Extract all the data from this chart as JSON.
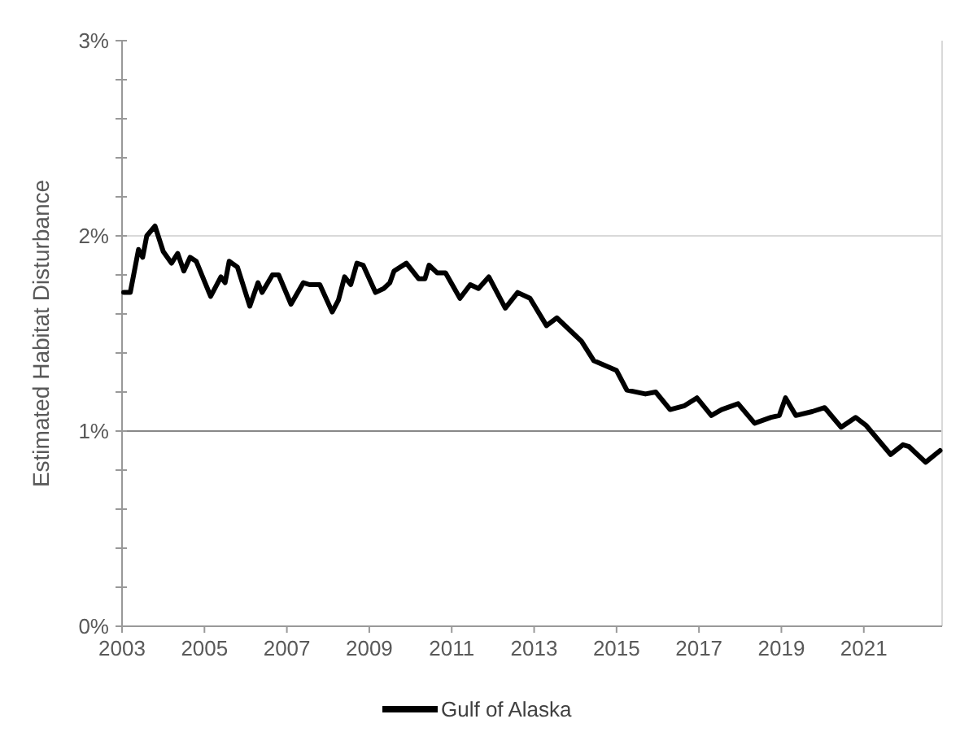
{
  "chart_data": {
    "type": "line",
    "ylabel": "Estimated Habitat Disturbance",
    "xlim": [
      2003,
      2022.9
    ],
    "xticks": [
      2003,
      2005,
      2007,
      2009,
      2011,
      2013,
      2015,
      2017,
      2019,
      2021
    ],
    "ylim": [
      0,
      3
    ],
    "yticks": [
      {
        "value": 0,
        "label": "0%"
      },
      {
        "value": 0.2,
        "label": null
      },
      {
        "value": 0.4,
        "label": null
      },
      {
        "value": 0.6,
        "label": null
      },
      {
        "value": 0.8,
        "label": null
      },
      {
        "value": 1,
        "label": "1%"
      },
      {
        "value": 1.2,
        "label": null
      },
      {
        "value": 1.4,
        "label": null
      },
      {
        "value": 1.6,
        "label": null
      },
      {
        "value": 1.8,
        "label": null
      },
      {
        "value": 2,
        "label": "2%"
      },
      {
        "value": 2.2,
        "label": null
      },
      {
        "value": 2.4,
        "label": null
      },
      {
        "value": 2.6,
        "label": null
      },
      {
        "value": 2.8,
        "label": null
      },
      {
        "value": 3,
        "label": "3%"
      }
    ],
    "ref_lines": [
      {
        "axis": "y",
        "value": 1,
        "color": "#888888"
      },
      {
        "axis": "y",
        "value": 2,
        "color": "#d9d9d9"
      }
    ],
    "legend": "bottom",
    "line_style": "solid",
    "marker": "none",
    "x": [
      2003.04,
      2003.2,
      2003.4,
      2003.5,
      2003.6,
      2003.8,
      2004.0,
      2004.2,
      2004.35,
      2004.5,
      2004.65,
      2004.8,
      2005.15,
      2005.4,
      2005.5,
      2005.6,
      2005.8,
      2006.1,
      2006.3,
      2006.4,
      2006.65,
      2006.8,
      2007.1,
      2007.4,
      2007.55,
      2007.8,
      2008.1,
      2008.25,
      2008.4,
      2008.55,
      2008.7,
      2008.85,
      2009.15,
      2009.35,
      2009.5,
      2009.6,
      2009.9,
      2010.2,
      2010.35,
      2010.45,
      2010.65,
      2010.85,
      2011.2,
      2011.45,
      2011.65,
      2011.9,
      2012.3,
      2012.6,
      2012.9,
      2013.3,
      2013.55,
      2013.95,
      2014.15,
      2014.45,
      2015.0,
      2015.25,
      2015.7,
      2015.95,
      2016.3,
      2016.65,
      2016.95,
      2017.3,
      2017.55,
      2017.95,
      2018.35,
      2018.75,
      2018.95,
      2019.1,
      2019.35,
      2019.75,
      2020.05,
      2020.45,
      2020.8,
      2021.05,
      2021.65,
      2021.95,
      2022.1,
      2022.5,
      2022.85
    ],
    "series": [
      {
        "name": "Gulf of Alaska",
        "color": "#000000",
        "values": [
          1.71,
          1.71,
          1.93,
          1.89,
          2.0,
          2.05,
          1.92,
          1.86,
          1.91,
          1.82,
          1.89,
          1.87,
          1.69,
          1.79,
          1.76,
          1.87,
          1.84,
          1.64,
          1.76,
          1.71,
          1.8,
          1.8,
          1.65,
          1.76,
          1.75,
          1.75,
          1.61,
          1.67,
          1.79,
          1.75,
          1.86,
          1.85,
          1.71,
          1.73,
          1.76,
          1.82,
          1.86,
          1.78,
          1.78,
          1.85,
          1.81,
          1.81,
          1.68,
          1.75,
          1.73,
          1.79,
          1.63,
          1.71,
          1.68,
          1.54,
          1.58,
          1.5,
          1.46,
          1.36,
          1.31,
          1.21,
          1.19,
          1.2,
          1.11,
          1.13,
          1.17,
          1.08,
          1.11,
          1.14,
          1.04,
          1.07,
          1.08,
          1.17,
          1.08,
          1.1,
          1.12,
          1.02,
          1.07,
          1.03,
          0.88,
          0.93,
          0.92,
          0.84,
          0.9
        ]
      }
    ]
  }
}
